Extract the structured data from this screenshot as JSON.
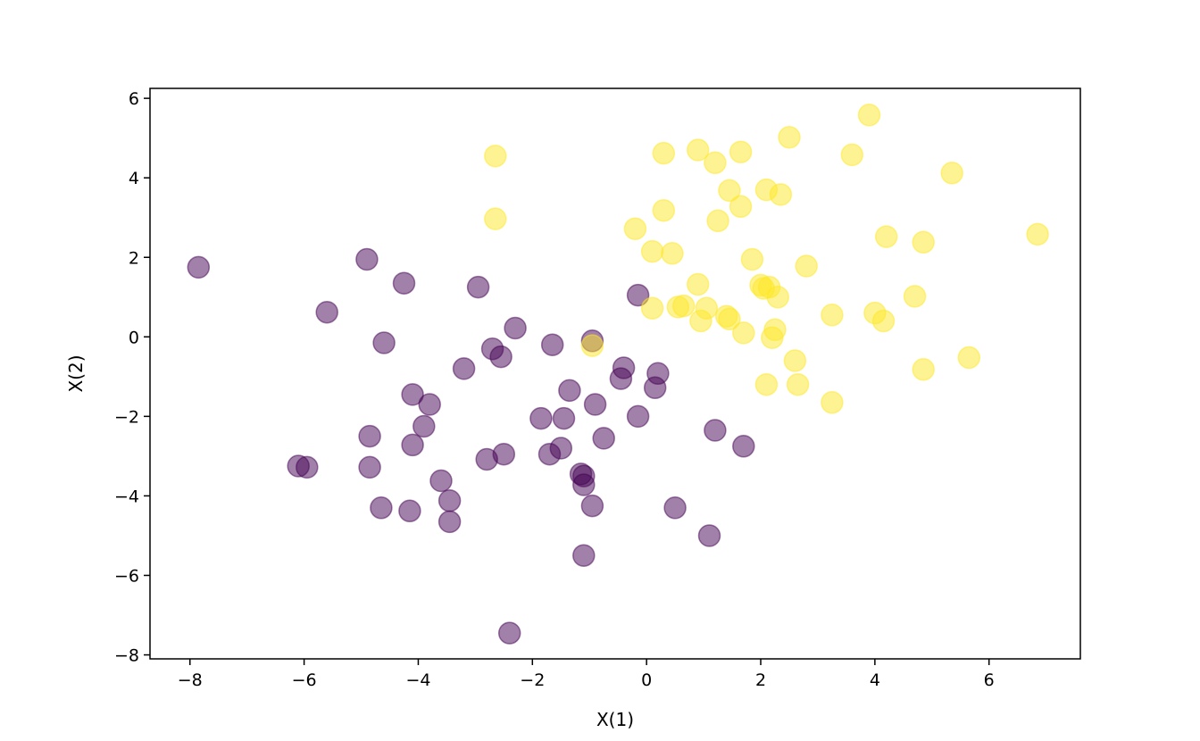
{
  "chart_data": {
    "type": "scatter",
    "title": "",
    "xlabel": "X(1)",
    "ylabel": "X(2)",
    "xlim": [
      -8.7,
      7.6
    ],
    "ylim": [
      -8.1,
      6.25
    ],
    "xticks": [
      -8,
      -6,
      -4,
      -2,
      0,
      2,
      4,
      6
    ],
    "yticks": [
      -8,
      -6,
      -4,
      -2,
      0,
      2,
      4,
      6
    ],
    "grid": false,
    "legend": "none",
    "marker_alpha": 0.5,
    "series": [
      {
        "color": "#440154",
        "points": [
          [
            -7.85,
            1.75
          ],
          [
            -4.9,
            1.95
          ],
          [
            -4.25,
            1.35
          ],
          [
            -5.6,
            0.62
          ],
          [
            -4.6,
            -0.15
          ],
          [
            -2.95,
            1.25
          ],
          [
            -2.3,
            0.22
          ],
          [
            -2.7,
            -0.3
          ],
          [
            -2.55,
            -0.5
          ],
          [
            -3.2,
            -0.8
          ],
          [
            -1.65,
            -0.2
          ],
          [
            -0.95,
            -0.1
          ],
          [
            -0.15,
            1.05
          ],
          [
            -4.1,
            -1.45
          ],
          [
            -3.8,
            -1.7
          ],
          [
            -3.9,
            -2.25
          ],
          [
            -4.85,
            -2.5
          ],
          [
            -4.1,
            -2.72
          ],
          [
            -4.85,
            -3.28
          ],
          [
            -6.1,
            -3.25
          ],
          [
            -5.95,
            -3.28
          ],
          [
            -3.6,
            -3.62
          ],
          [
            -3.45,
            -4.12
          ],
          [
            -4.65,
            -4.3
          ],
          [
            -4.15,
            -4.38
          ],
          [
            -3.45,
            -4.65
          ],
          [
            -2.8,
            -3.08
          ],
          [
            -2.5,
            -2.95
          ],
          [
            -1.85,
            -2.05
          ],
          [
            -1.45,
            -2.05
          ],
          [
            -1.35,
            -1.35
          ],
          [
            -1.7,
            -2.95
          ],
          [
            -1.5,
            -2.8
          ],
          [
            -0.9,
            -1.7
          ],
          [
            -0.75,
            -2.55
          ],
          [
            -0.45,
            -1.05
          ],
          [
            -0.4,
            -0.78
          ],
          [
            0.2,
            -0.92
          ],
          [
            0.15,
            -1.28
          ],
          [
            -0.15,
            -2.0
          ],
          [
            -1.15,
            -3.45
          ],
          [
            -1.1,
            -3.5
          ],
          [
            -1.1,
            -3.72
          ],
          [
            -0.95,
            -4.25
          ],
          [
            0.5,
            -4.3
          ],
          [
            -1.1,
            -5.5
          ],
          [
            1.1,
            -5.0
          ],
          [
            1.2,
            -2.35
          ],
          [
            1.7,
            -2.75
          ],
          [
            -2.4,
            -7.45
          ]
        ]
      },
      {
        "color": "#fde725",
        "points": [
          [
            -2.65,
            4.55
          ],
          [
            -2.65,
            2.97
          ],
          [
            -0.95,
            -0.22
          ],
          [
            -0.2,
            2.72
          ],
          [
            0.1,
            2.15
          ],
          [
            0.45,
            2.1
          ],
          [
            0.1,
            0.72
          ],
          [
            0.55,
            0.75
          ],
          [
            0.65,
            0.78
          ],
          [
            0.3,
            4.62
          ],
          [
            0.3,
            3.18
          ],
          [
            0.9,
            4.7
          ],
          [
            1.2,
            4.38
          ],
          [
            1.65,
            4.65
          ],
          [
            1.45,
            3.68
          ],
          [
            1.65,
            3.28
          ],
          [
            1.25,
            2.92
          ],
          [
            0.9,
            1.32
          ],
          [
            1.05,
            0.72
          ],
          [
            0.95,
            0.4
          ],
          [
            1.4,
            0.52
          ],
          [
            1.45,
            0.45
          ],
          [
            1.7,
            0.1
          ],
          [
            1.85,
            1.95
          ],
          [
            2.0,
            1.3
          ],
          [
            2.05,
            1.22
          ],
          [
            2.15,
            1.25
          ],
          [
            2.3,
            1.0
          ],
          [
            2.1,
            3.7
          ],
          [
            2.35,
            3.58
          ],
          [
            2.5,
            5.02
          ],
          [
            2.25,
            0.18
          ],
          [
            2.2,
            -0.02
          ],
          [
            2.1,
            -1.2
          ],
          [
            2.6,
            -0.6
          ],
          [
            2.65,
            -1.2
          ],
          [
            2.8,
            1.78
          ],
          [
            3.25,
            0.55
          ],
          [
            3.25,
            -1.65
          ],
          [
            3.6,
            4.58
          ],
          [
            3.9,
            5.58
          ],
          [
            4.0,
            0.6
          ],
          [
            4.15,
            0.4
          ],
          [
            4.2,
            2.52
          ],
          [
            4.7,
            1.02
          ],
          [
            4.85,
            2.38
          ],
          [
            4.85,
            -0.82
          ],
          [
            5.35,
            4.12
          ],
          [
            5.65,
            -0.52
          ],
          [
            6.85,
            2.58
          ]
        ]
      }
    ]
  }
}
